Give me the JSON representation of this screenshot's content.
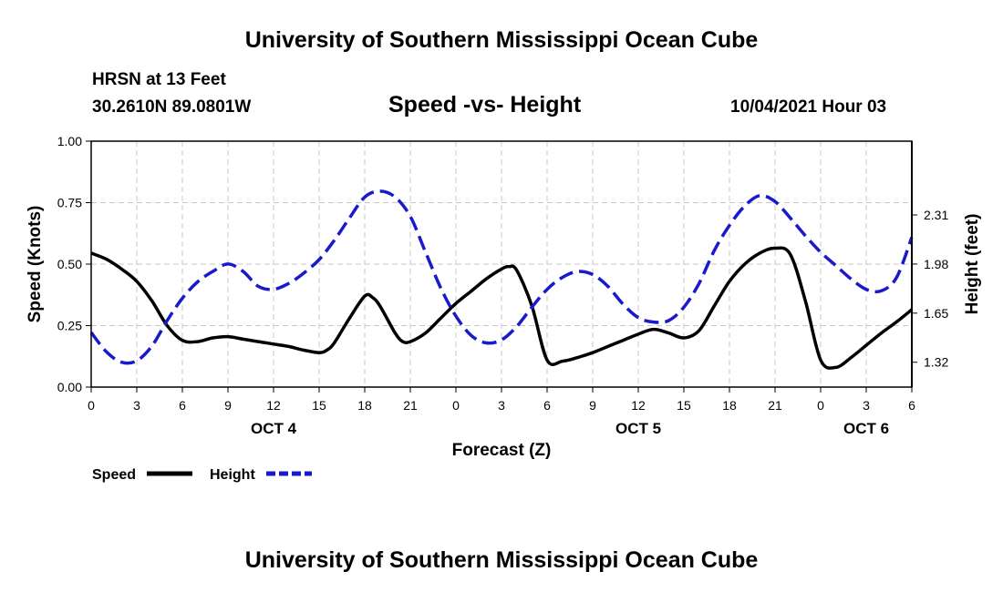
{
  "header": {
    "title": "University of Southern Mississippi Ocean Cube",
    "station": "HRSN at 13 Feet",
    "location": "30.2610N  89.0801W",
    "subtitle": "Speed -vs- Height",
    "datetime": "10/04/2021 Hour 03"
  },
  "footer": {
    "title": "University of Southern Mississippi Ocean Cube"
  },
  "colors": {
    "speed": "#000000",
    "height": "#1a1acc",
    "grid": "#c8c8c8",
    "axis": "#000000"
  },
  "chart_data": {
    "type": "line",
    "title": "Speed -vs- Height",
    "xlabel": "Forecast (Z)",
    "ylabel": "Speed (Knots)",
    "y2label": "Height (feet)",
    "xlim": [
      0,
      54
    ],
    "ylim": [
      0,
      1
    ],
    "y2lim": [
      1.153,
      2.806
    ],
    "x_ticks": [
      0,
      3,
      6,
      9,
      12,
      15,
      18,
      21,
      24,
      27,
      30,
      33,
      36,
      39,
      42,
      45,
      48,
      51,
      54
    ],
    "x_tick_labels": [
      "0",
      "3",
      "6",
      "9",
      "12",
      "15",
      "18",
      "21",
      "0",
      "3",
      "6",
      "9",
      "12",
      "15",
      "18",
      "21",
      "0",
      "3",
      "6"
    ],
    "y_ticks": [
      0,
      0.25,
      0.5,
      0.75,
      1.0
    ],
    "y_tick_labels": [
      "0.00",
      "0.25",
      "0.50",
      "0.75",
      "1.00"
    ],
    "y2_ticks": [
      1.32,
      1.65,
      1.98,
      2.31
    ],
    "y2_tick_labels": [
      "1.32",
      "1.65",
      "1.98",
      "2.31"
    ],
    "day_labels": [
      {
        "x": 12,
        "label": "OCT 4"
      },
      {
        "x": 36,
        "label": "OCT 5"
      },
      {
        "x": 51,
        "label": "OCT 6"
      }
    ],
    "grid": true,
    "legend": "bottom-left",
    "series": [
      {
        "name": "Speed",
        "axis": "left",
        "style": "solid",
        "x": [
          0,
          1,
          2,
          3,
          4,
          5,
          6,
          7,
          8,
          9,
          10,
          11,
          12,
          13,
          14,
          15,
          15.5,
          16,
          17,
          18,
          18.5,
          19,
          20,
          20.5,
          21,
          22,
          23,
          24,
          25,
          26,
          27,
          27.5,
          28,
          29,
          30,
          31,
          32,
          33,
          34,
          35,
          36,
          37,
          38,
          39,
          40,
          41,
          42,
          43,
          44,
          45,
          46,
          47,
          48,
          49,
          50,
          51,
          52,
          53,
          54
        ],
        "values": [
          0.545,
          0.52,
          0.48,
          0.43,
          0.35,
          0.25,
          0.19,
          0.185,
          0.2,
          0.205,
          0.195,
          0.185,
          0.175,
          0.165,
          0.15,
          0.14,
          0.15,
          0.18,
          0.28,
          0.37,
          0.365,
          0.33,
          0.22,
          0.185,
          0.185,
          0.22,
          0.28,
          0.34,
          0.39,
          0.44,
          0.48,
          0.49,
          0.475,
          0.33,
          0.11,
          0.105,
          0.12,
          0.14,
          0.165,
          0.19,
          0.215,
          0.235,
          0.22,
          0.2,
          0.23,
          0.33,
          0.43,
          0.5,
          0.545,
          0.565,
          0.54,
          0.35,
          0.11,
          0.08,
          0.12,
          0.17,
          0.22,
          0.265,
          0.315
        ]
      },
      {
        "name": "Height",
        "axis": "right",
        "style": "dashed",
        "x": [
          0,
          1,
          2,
          3,
          4,
          5,
          6,
          7,
          8,
          9,
          10,
          11,
          12,
          13,
          14,
          15,
          16,
          17,
          18,
          19,
          20,
          21,
          22,
          23,
          24,
          25,
          26,
          27,
          28,
          29,
          30,
          31,
          32,
          33,
          34,
          35,
          36,
          37,
          38,
          39,
          40,
          41,
          42,
          43,
          44,
          45,
          46,
          47,
          48,
          49,
          50,
          51,
          52,
          53,
          54
        ],
        "values": [
          1.52,
          1.39,
          1.32,
          1.33,
          1.43,
          1.6,
          1.75,
          1.86,
          1.93,
          1.98,
          1.93,
          1.83,
          1.81,
          1.85,
          1.92,
          2.01,
          2.14,
          2.29,
          2.43,
          2.47,
          2.43,
          2.3,
          2.06,
          1.82,
          1.63,
          1.5,
          1.45,
          1.47,
          1.56,
          1.69,
          1.81,
          1.89,
          1.93,
          1.91,
          1.83,
          1.71,
          1.62,
          1.59,
          1.6,
          1.69,
          1.85,
          2.07,
          2.24,
          2.37,
          2.44,
          2.4,
          2.29,
          2.17,
          2.06,
          1.97,
          1.88,
          1.81,
          1.8,
          1.89,
          2.16
        ]
      }
    ]
  }
}
